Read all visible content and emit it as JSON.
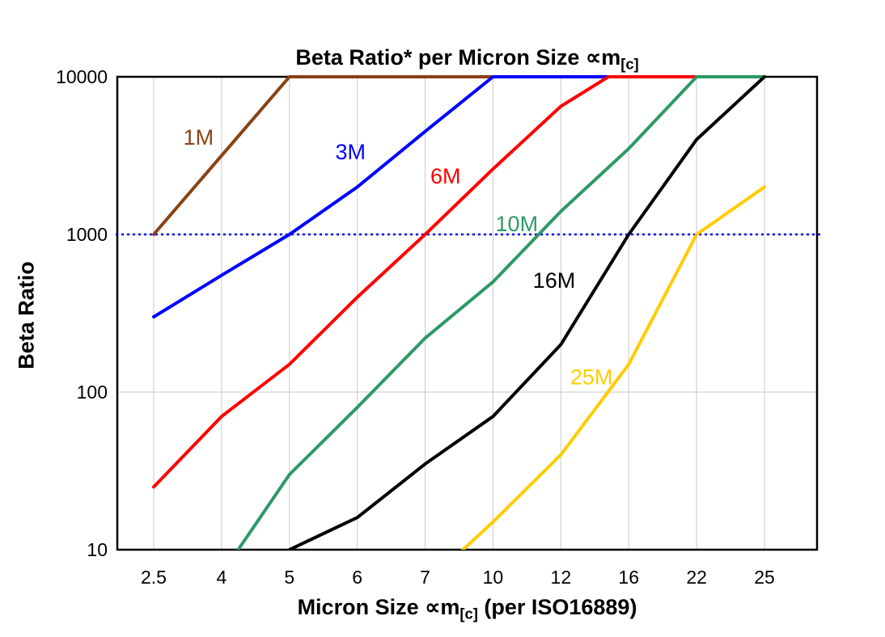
{
  "chart_data": {
    "type": "line",
    "title_prefix": "Beta Ratio* per Micron Size ∝m",
    "title_sub": "[c]",
    "xlabel_prefix": "Micron Size ∝m",
    "xlabel_sub": "[c]",
    "xlabel_suffix": " (per ISO16889)",
    "ylabel": "Beta Ratio",
    "x_categories": [
      "2.5",
      "4",
      "5",
      "6",
      "7",
      "10",
      "12",
      "16",
      "22",
      "25"
    ],
    "y_ticks": [
      10,
      100,
      1000,
      10000
    ],
    "y_scale": "log",
    "ylim": [
      10,
      10000
    ],
    "grid": true,
    "gridline_color": "#c9c9c9",
    "reference_line": {
      "value": 1000,
      "color": "#0000ee",
      "style": "dotted"
    },
    "series": [
      {
        "name": "1M",
        "color": "#8a4117",
        "label_at": [
          0.66,
          3700
        ],
        "points": [
          [
            0,
            1000
          ],
          [
            2,
            10000
          ],
          [
            5,
            10000
          ]
        ]
      },
      {
        "name": "3M",
        "color": "#0000ff",
        "label_at": [
          2.9,
          3000
        ],
        "points": [
          [
            0,
            300
          ],
          [
            1,
            550
          ],
          [
            2,
            1000
          ],
          [
            3,
            2000
          ],
          [
            4,
            4500
          ],
          [
            5,
            10000
          ],
          [
            9,
            10000
          ]
        ]
      },
      {
        "name": "6M",
        "color": "#ff0000",
        "label_at": [
          4.3,
          2100
        ],
        "points": [
          [
            0,
            25
          ],
          [
            1,
            70
          ],
          [
            2,
            150
          ],
          [
            3,
            400
          ],
          [
            4,
            1000
          ],
          [
            5,
            2600
          ],
          [
            6,
            6500
          ],
          [
            6.7,
            10000
          ],
          [
            9,
            10000
          ]
        ]
      },
      {
        "name": "10M",
        "color": "#2e9966",
        "label_at": [
          5.35,
          1050
        ],
        "points": [
          [
            1,
            7
          ],
          [
            2,
            30
          ],
          [
            3,
            80
          ],
          [
            4,
            220
          ],
          [
            5,
            500
          ],
          [
            6,
            1400
          ],
          [
            7,
            3500
          ],
          [
            8,
            10000
          ],
          [
            9,
            10000
          ]
        ]
      },
      {
        "name": "16M",
        "color": "#000000",
        "label_at": [
          5.9,
          460
        ],
        "points": [
          [
            2,
            10
          ],
          [
            3,
            16
          ],
          [
            4,
            35
          ],
          [
            5,
            70
          ],
          [
            6,
            200
          ],
          [
            7,
            1000
          ],
          [
            8,
            4000
          ],
          [
            9,
            10000
          ]
        ]
      },
      {
        "name": "25M",
        "color": "#ffcc00",
        "label_at": [
          6.45,
          112
        ],
        "points": [
          [
            4,
            6
          ],
          [
            5,
            15
          ],
          [
            6,
            40
          ],
          [
            7,
            150
          ],
          [
            8,
            1000
          ],
          [
            9,
            2000
          ]
        ]
      }
    ]
  }
}
